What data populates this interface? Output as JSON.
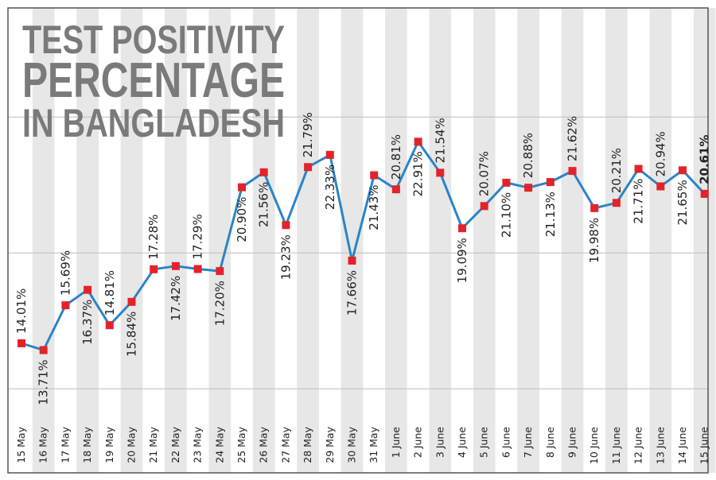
{
  "chart_data": {
    "type": "line",
    "title_lines": [
      "TEST POSITIVITY",
      "PERCENTAGE",
      "IN BANGLADESH"
    ],
    "categories": [
      "15 May",
      "16 May",
      "17 May",
      "18 May",
      "19 May",
      "20 May",
      "21 May",
      "22 May",
      "23 May",
      "24 May",
      "25 May",
      "26 May",
      "27 May",
      "28 May",
      "29 May",
      "30 May",
      "31 May",
      "1 June",
      "2 June",
      "3 June",
      "4 June",
      "5 June",
      "6 June",
      "7 June",
      "8 June",
      "9 June",
      "10 June",
      "11 June",
      "12 June",
      "13 June",
      "14 June",
      "15 June"
    ],
    "values": [
      14.01,
      13.71,
      15.69,
      16.37,
      14.81,
      15.84,
      17.28,
      17.42,
      17.29,
      17.2,
      20.9,
      21.56,
      19.23,
      21.79,
      22.33,
      17.66,
      21.43,
      20.81,
      22.91,
      21.54,
      19.09,
      20.07,
      21.1,
      20.88,
      21.13,
      21.62,
      19.98,
      20.21,
      21.71,
      20.94,
      21.65,
      20.61
    ],
    "labels": [
      "14.01%",
      "13.71%",
      "15.69%",
      "16.37%",
      "14.81%",
      "15.84%",
      "17.28%",
      "17.42%",
      "17.29%",
      "17.20%",
      "20.90%",
      "21.56%",
      "19.23%",
      "21.79%",
      "22.33%",
      "17.66%",
      "21.43%",
      "20.81%",
      "22.91%",
      "21.54%",
      "19.09%",
      "20.07%",
      "21.10%",
      "20.88%",
      "21.13%",
      "21.62%",
      "19.98%",
      "20.21%",
      "21.71%",
      "20.94%",
      "21.65%",
      "20.61%"
    ],
    "label_position": [
      "above",
      "below",
      "above",
      "below",
      "above",
      "below",
      "above",
      "below",
      "above",
      "below",
      "below",
      "below",
      "below",
      "above",
      "below",
      "below",
      "below",
      "above",
      "below",
      "above",
      "below",
      "above",
      "below",
      "above",
      "below",
      "above",
      "below",
      "above",
      "below",
      "above",
      "below",
      "above"
    ],
    "highlight_index": 31,
    "ylim": [
      11.5,
      25
    ],
    "grid": true,
    "legend": "none",
    "colors": {
      "line": "#2b84c6",
      "marker": "#e3232a",
      "title": "#7a7a7a",
      "band": "#e7e7e7",
      "grid": "#bdbdbd"
    }
  }
}
